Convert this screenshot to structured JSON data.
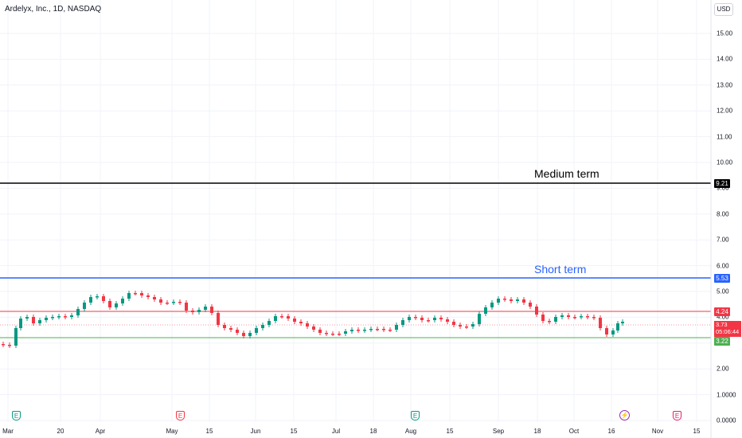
{
  "header": {
    "title": "Ardelyx, Inc., 1D, NASDAQ",
    "currency": "USD"
  },
  "price_axis": {
    "ticks": [
      "15.00",
      "14.00",
      "13.00",
      "12.00",
      "11.00",
      "10.00",
      "9.00",
      "8.00",
      "7.00",
      "6.00",
      "5.00",
      "4.00",
      "3.00",
      "2.00",
      "1.0000",
      "0.0000"
    ]
  },
  "time_axis": {
    "ticks": [
      "Mar",
      "20",
      "Apr",
      "May",
      "15",
      "Jun",
      "15",
      "Jul",
      "18",
      "Aug",
      "15",
      "Sep",
      "18",
      "Oct",
      "16",
      "Nov",
      "15"
    ]
  },
  "levels": {
    "medium": {
      "label": "Medium term",
      "value": "9.21",
      "color": "#000000"
    },
    "short": {
      "label": "Short term",
      "value": "5.53",
      "color": "#2962ff"
    },
    "upper": {
      "value": "4.24",
      "color": "#f23645"
    },
    "lower": {
      "value": "3.22",
      "color": "#4caf50"
    }
  },
  "current": {
    "price": "3.73",
    "countdown": "05:06:44",
    "color": "#f23645"
  },
  "events": [
    {
      "type": "earnings",
      "label": "E",
      "color": "#089981"
    },
    {
      "type": "earnings",
      "label": "E",
      "color": "#f23645"
    },
    {
      "type": "earnings",
      "label": "E",
      "color": "#089981"
    },
    {
      "type": "split",
      "label": "⚡",
      "color": "#9c27b0"
    },
    {
      "type": "earnings",
      "label": "E",
      "color": "#e91e63"
    }
  ],
  "colors": {
    "up": "#089981",
    "down": "#f23645",
    "grid": "#f0f3fa"
  }
}
